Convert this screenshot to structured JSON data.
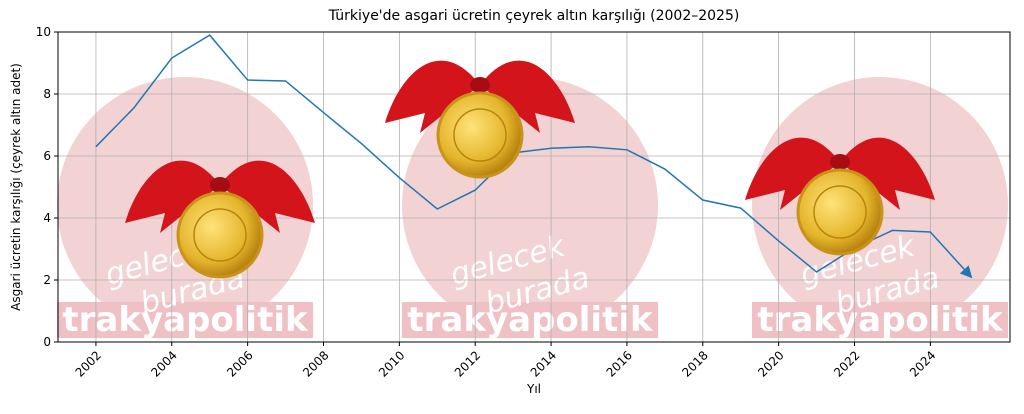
{
  "chart_data": {
    "type": "line",
    "title": "Türkiye'de asgari ücretin çeyrek altın karşılığı (2002–2025)",
    "x_label": "Yıl",
    "y_label": "Asgari ücretin karşılığı (çeyrek altın adet)",
    "x": [
      2002,
      2003,
      2004,
      2005,
      2006,
      2007,
      2008,
      2009,
      2010,
      2011,
      2012,
      2013,
      2014,
      2015,
      2016,
      2017,
      2018,
      2019,
      2020,
      2021,
      2022,
      2023,
      2024,
      2025
    ],
    "series": [
      {
        "name": "Çeyrek altın karşılığı",
        "color": "#1f77b4",
        "values": [
          6.3,
          7.55,
          9.16,
          9.9,
          8.45,
          8.42,
          7.4,
          6.4,
          5.3,
          4.29,
          4.9,
          6.1,
          6.25,
          6.3,
          6.2,
          5.58,
          4.58,
          4.32,
          3.26,
          2.26,
          3.03,
          3.6,
          3.55,
          2.2
        ]
      }
    ],
    "xlim": [
      2001,
      2026.1
    ],
    "ylim": [
      0,
      10
    ],
    "xticks": [
      2002,
      2004,
      2006,
      2008,
      2010,
      2012,
      2014,
      2016,
      2018,
      2020,
      2022,
      2024
    ],
    "yticks": [
      0,
      2,
      4,
      6,
      8,
      10
    ],
    "grid": true,
    "watermark": {
      "brand": "trakyapolitik",
      "slogan_1": "gelecek",
      "slogan_2": "burada"
    }
  }
}
